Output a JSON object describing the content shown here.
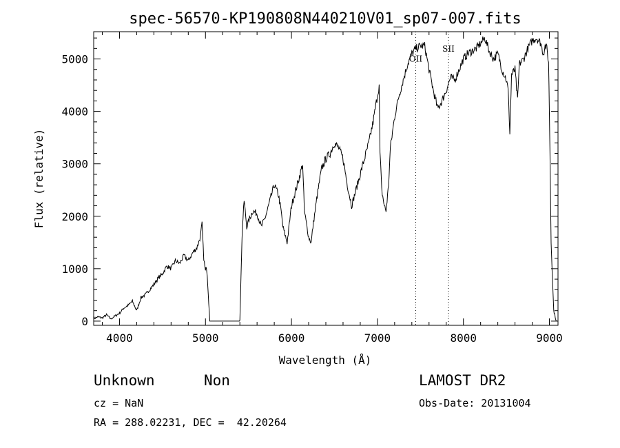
{
  "chart_data": {
    "type": "line",
    "title": "spec-56570-KP190808N440210V01_sp07-007.fits",
    "xlabel": "Wavelength (Å)",
    "ylabel": "Flux (relative)",
    "xlim": [
      3700,
      9100
    ],
    "ylim": [
      -80,
      5520
    ],
    "x_ticks": [
      "4000",
      "5000",
      "6000",
      "7000",
      "8000",
      "9000"
    ],
    "x_tick_values": [
      4000,
      5000,
      6000,
      7000,
      8000,
      9000
    ],
    "y_ticks": [
      "0",
      "1000",
      "2000",
      "3000",
      "4000",
      "5000"
    ],
    "y_tick_values": [
      0,
      1000,
      2000,
      3000,
      4000,
      5000
    ],
    "grid": false,
    "series": [
      {
        "x": [
          3700,
          3750,
          3800,
          3850,
          3900,
          3950,
          4000,
          4050,
          4100,
          4150,
          4200,
          4250,
          4300,
          4350,
          4400,
          4450,
          4500,
          4550,
          4600,
          4650,
          4700,
          4750,
          4800,
          4850,
          4900,
          4940,
          4960,
          4980,
          5000,
          5010,
          5020,
          5050,
          5100,
          5200,
          5300,
          5400,
          5420,
          5430,
          5450,
          5480,
          5500,
          5550,
          5600,
          5650,
          5700,
          5750,
          5800,
          5850,
          5880,
          5900,
          5950,
          6000,
          6050,
          6100,
          6130,
          6150,
          6200,
          6230,
          6250,
          6300,
          6350,
          6400,
          6450,
          6500,
          6550,
          6600,
          6650,
          6700,
          6750,
          6800,
          6850,
          6900,
          6950,
          7000,
          7020,
          7030,
          7050,
          7080,
          7100,
          7130,
          7150,
          7200,
          7250,
          7300,
          7350,
          7400,
          7450,
          7500,
          7550,
          7600,
          7650,
          7700,
          7750,
          7800,
          7850,
          7900,
          7950,
          8000,
          8050,
          8100,
          8150,
          8200,
          8250,
          8300,
          8350,
          8400,
          8450,
          8500,
          8520,
          8540,
          8560,
          8600,
          8630,
          8650,
          8700,
          8750,
          8800,
          8850,
          8900,
          8930,
          8950,
          8970,
          8990,
          9000,
          9020,
          9050,
          9080
        ],
        "y": [
          50,
          80,
          60,
          120,
          40,
          100,
          150,
          250,
          300,
          380,
          200,
          450,
          500,
          600,
          700,
          820,
          900,
          1050,
          1000,
          1150,
          1100,
          1250,
          1150,
          1300,
          1400,
          1600,
          1850,
          1200,
          950,
          1050,
          900,
          0,
          0,
          0,
          0,
          0,
          1300,
          1800,
          2300,
          1800,
          1900,
          2100,
          2050,
          1800,
          2000,
          2300,
          2600,
          2400,
          2100,
          1800,
          1500,
          2200,
          2500,
          2800,
          3000,
          2100,
          1600,
          1500,
          1800,
          2400,
          2900,
          3100,
          3200,
          3400,
          3300,
          3100,
          2600,
          2200,
          2500,
          2800,
          3100,
          3400,
          3800,
          4300,
          4500,
          3200,
          2500,
          2200,
          2100,
          2600,
          3300,
          3900,
          4300,
          4600,
          4900,
          5100,
          5200,
          5250,
          5250,
          4800,
          4400,
          4050,
          4200,
          4400,
          4650,
          4600,
          4800,
          5000,
          5100,
          5150,
          5200,
          5300,
          5400,
          5150,
          5000,
          5100,
          4800,
          4600,
          4400,
          3600,
          4700,
          4800,
          4200,
          4900,
          5000,
          5200,
          5350,
          5400,
          5300,
          5100,
          5250,
          5200,
          4950,
          4000,
          1500,
          200,
          0
        ]
      }
    ],
    "annotations": [
      {
        "label": "OII",
        "x": 7445,
        "y": 4950
      },
      {
        "label": "SII",
        "x": 7826,
        "y": 5140
      }
    ],
    "reference_lines": [
      7445,
      7826
    ]
  },
  "info": {
    "class_label": "Unknown",
    "subclass_label": "Non",
    "survey_label": "LAMOST DR2",
    "cz_text": "cz = NaN",
    "obs_date_text": "Obs-Date: 20131004",
    "coords_text": "RA = 288.02231, DEC =  42.20264"
  }
}
